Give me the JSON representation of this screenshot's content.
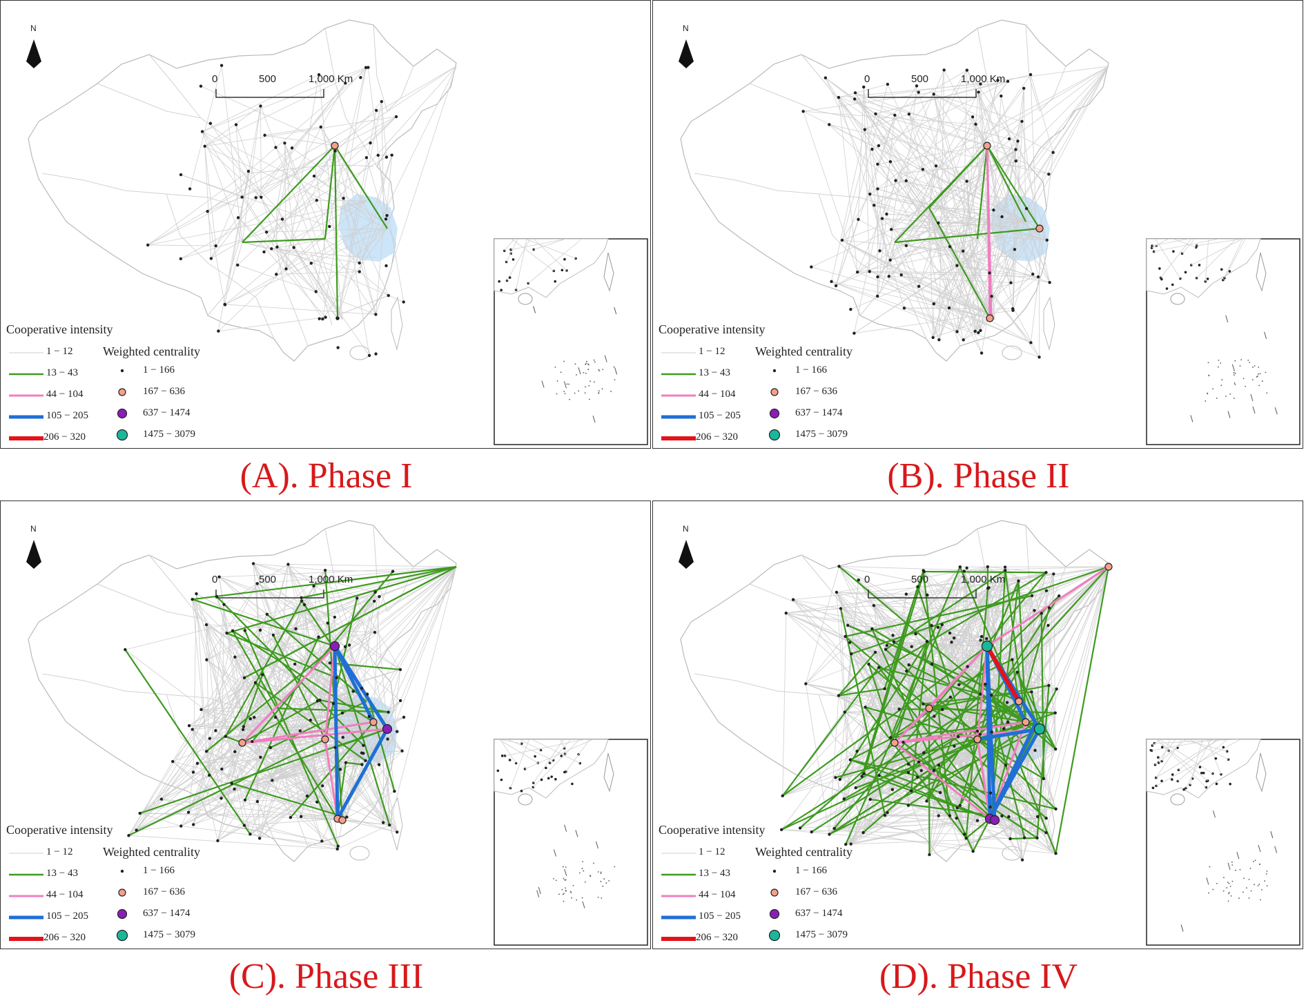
{
  "legend": {
    "intensity_title": "Cooperative intensity",
    "intensity_classes": [
      {
        "label": "1 − 12",
        "color": "#cfcfcf"
      },
      {
        "label": "13 − 43",
        "color": "#3d9a1e"
      },
      {
        "label": "44 − 104",
        "color": "#f07ec0"
      },
      {
        "label": "105 − 205",
        "color": "#1f6fd6"
      },
      {
        "label": "206 − 320",
        "color": "#e3121b"
      }
    ],
    "centrality_title": "Weighted centrality",
    "centrality_classes": [
      {
        "label": "1 − 166",
        "color": "#222222"
      },
      {
        "label": "167 − 636",
        "color": "#f4a08a"
      },
      {
        "label": "637 − 1474",
        "color": "#8a1fb8"
      },
      {
        "label": "1475 − 3079",
        "color": "#1bb79a"
      }
    ]
  },
  "scalebar": {
    "labels": [
      "0",
      "500",
      "1,000 Km"
    ]
  },
  "north_arrow": {
    "label": "N",
    "icon": "north-arrow-icon"
  },
  "region_color": "#bcdcf5",
  "panels": [
    {
      "caption": "(A). Phase I"
    },
    {
      "caption": "(B). Phase II"
    },
    {
      "caption": "(C). Phase III"
    },
    {
      "caption": "(D). Phase IV"
    }
  ]
}
